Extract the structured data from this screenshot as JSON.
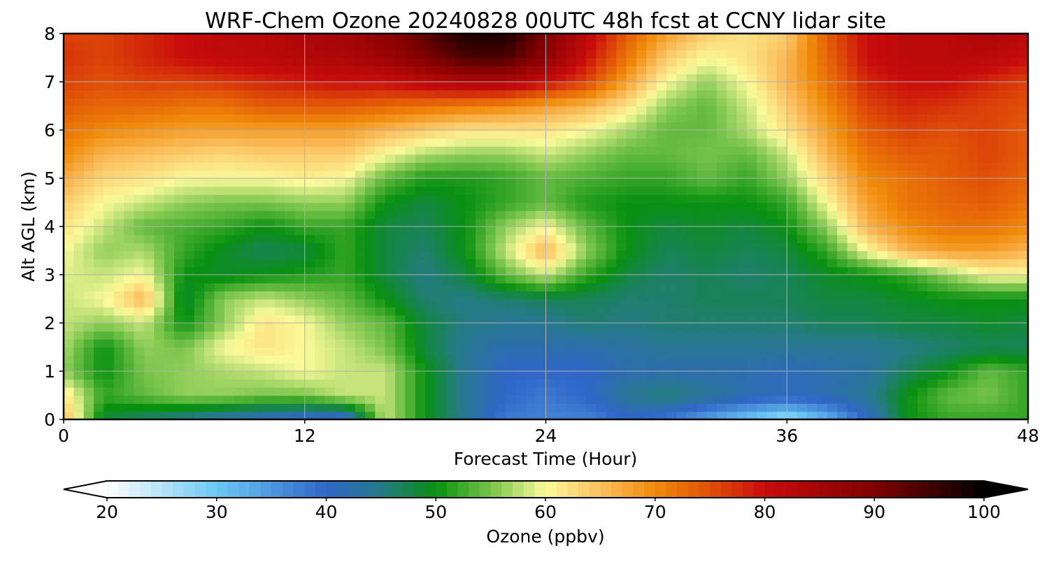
{
  "chart_data": {
    "type": "heatmap",
    "title": "WRF-Chem Ozone  20240828 00UTC 48h fcst at CCNY lidar site",
    "xlabel": "Forecast Time (Hour)",
    "ylabel": "Alt AGL (km)",
    "xlim": [
      0,
      48
    ],
    "ylim": [
      0,
      8
    ],
    "xticks": [
      0,
      12,
      24,
      36,
      48
    ],
    "yticks": [
      0,
      1,
      2,
      3,
      4,
      5,
      6,
      7,
      8
    ],
    "grid": true,
    "x_hours": [
      0,
      2,
      4,
      6,
      8,
      10,
      12,
      14,
      16,
      18,
      20,
      22,
      24,
      26,
      28,
      30,
      32,
      34,
      36,
      38,
      40,
      42,
      44,
      46,
      48
    ],
    "y_km": [
      0,
      0.5,
      1,
      1.5,
      2,
      2.5,
      3,
      3.5,
      4,
      4.5,
      5,
      5.5,
      6,
      6.5,
      7,
      7.5,
      8
    ],
    "values_ppbv": [
      [
        66,
        48,
        46,
        44,
        42,
        40,
        39,
        38,
        58,
        50,
        44,
        38,
        37,
        37,
        40,
        38,
        34,
        30,
        26,
        32,
        40,
        50,
        52,
        52,
        52
      ],
      [
        62,
        52,
        54,
        56,
        56,
        55,
        55,
        58,
        58,
        50,
        44,
        40,
        38,
        40,
        44,
        46,
        44,
        42,
        41,
        42,
        44,
        50,
        54,
        55,
        52
      ],
      [
        56,
        50,
        55,
        56,
        57,
        58,
        60,
        58,
        58,
        50,
        44,
        40,
        40,
        40,
        42,
        42,
        42,
        42,
        41,
        42,
        43,
        47,
        50,
        54,
        52
      ],
      [
        57,
        50,
        56,
        55,
        60,
        62,
        60,
        58,
        55,
        48,
        44,
        42,
        42,
        42,
        43,
        44,
        44,
        44,
        44,
        44,
        44,
        45,
        46,
        47,
        47
      ],
      [
        58,
        56,
        58,
        50,
        56,
        62,
        60,
        56,
        54,
        48,
        45,
        44,
        44,
        46,
        45,
        46,
        46,
        46,
        46,
        47,
        47,
        48,
        48,
        49,
        48
      ],
      [
        58,
        60,
        66,
        48,
        56,
        58,
        56,
        54,
        50,
        46,
        45,
        46,
        47,
        47,
        46,
        46,
        47,
        47,
        47,
        48,
        48,
        49,
        50,
        50,
        50
      ],
      [
        59,
        58,
        60,
        50,
        49,
        50,
        51,
        52,
        48,
        45,
        48,
        54,
        58,
        52,
        48,
        46,
        47,
        46,
        47,
        49,
        50,
        52,
        56,
        60,
        60
      ],
      [
        60,
        56,
        57,
        52,
        49,
        47,
        48,
        52,
        48,
        46,
        50,
        58,
        66,
        56,
        50,
        47,
        48,
        47,
        48,
        52,
        60,
        66,
        68,
        68,
        66
      ],
      [
        62,
        58,
        54,
        53,
        52,
        50,
        52,
        52,
        48,
        47,
        50,
        56,
        60,
        54,
        50,
        48,
        49,
        48,
        50,
        56,
        66,
        70,
        72,
        72,
        70
      ],
      [
        64,
        60,
        58,
        56,
        55,
        55,
        56,
        56,
        50,
        48,
        50,
        52,
        54,
        51,
        50,
        50,
        50,
        50,
        52,
        60,
        68,
        72,
        73,
        74,
        72
      ],
      [
        67,
        63,
        62,
        60,
        60,
        60,
        61,
        60,
        54,
        51,
        51,
        52,
        54,
        53,
        52,
        52,
        54,
        52,
        56,
        63,
        70,
        72,
        74,
        75,
        73
      ],
      [
        70,
        66,
        65,
        64,
        63,
        64,
        64,
        64,
        60,
        57,
        56,
        56,
        58,
        56,
        54,
        54,
        55,
        54,
        58,
        66,
        72,
        74,
        74,
        76,
        74
      ],
      [
        72,
        70,
        69,
        68,
        68,
        68,
        68,
        68,
        66,
        64,
        62,
        62,
        62,
        60,
        57,
        54,
        54,
        57,
        62,
        68,
        74,
        76,
        75,
        76,
        74
      ],
      [
        74,
        73,
        73,
        72,
        72,
        74,
        74,
        74,
        73,
        72,
        71,
        70,
        68,
        66,
        62,
        56,
        54,
        58,
        64,
        70,
        76,
        78,
        77,
        76,
        75
      ],
      [
        76,
        75,
        76,
        76,
        77,
        78,
        79,
        80,
        80,
        82,
        84,
        84,
        80,
        76,
        68,
        60,
        56,
        60,
        66,
        72,
        78,
        80,
        80,
        78,
        76
      ],
      [
        77,
        76,
        78,
        80,
        81,
        82,
        83,
        84,
        86,
        90,
        94,
        94,
        88,
        80,
        72,
        64,
        60,
        62,
        66,
        73,
        80,
        82,
        82,
        82,
        80
      ],
      [
        76,
        76,
        78,
        80,
        82,
        82,
        84,
        85,
        88,
        93,
        98,
        98,
        90,
        82,
        74,
        68,
        64,
        62,
        64,
        74,
        80,
        82,
        82,
        84,
        82
      ]
    ],
    "colorbar": {
      "label": "Ozone  (ppbv)",
      "min": 20,
      "max": 100,
      "ticks": [
        "20",
        "30",
        "40",
        "50",
        "60",
        "70",
        "80",
        "90",
        "100"
      ],
      "extend": "both",
      "stops": [
        {
          "v": 20,
          "color": "#ffffff"
        },
        {
          "v": 30,
          "color": "#6cc8f4"
        },
        {
          "v": 40,
          "color": "#3066c8"
        },
        {
          "v": 45,
          "color": "#257a86"
        },
        {
          "v": 50,
          "color": "#089010"
        },
        {
          "v": 55,
          "color": "#78c44a"
        },
        {
          "v": 60,
          "color": "#fbfa9a"
        },
        {
          "v": 65,
          "color": "#fbc060"
        },
        {
          "v": 70,
          "color": "#f08a0a"
        },
        {
          "v": 75,
          "color": "#e05008"
        },
        {
          "v": 80,
          "color": "#c80c0c"
        },
        {
          "v": 90,
          "color": "#800000"
        },
        {
          "v": 100,
          "color": "#000000"
        }
      ]
    }
  }
}
